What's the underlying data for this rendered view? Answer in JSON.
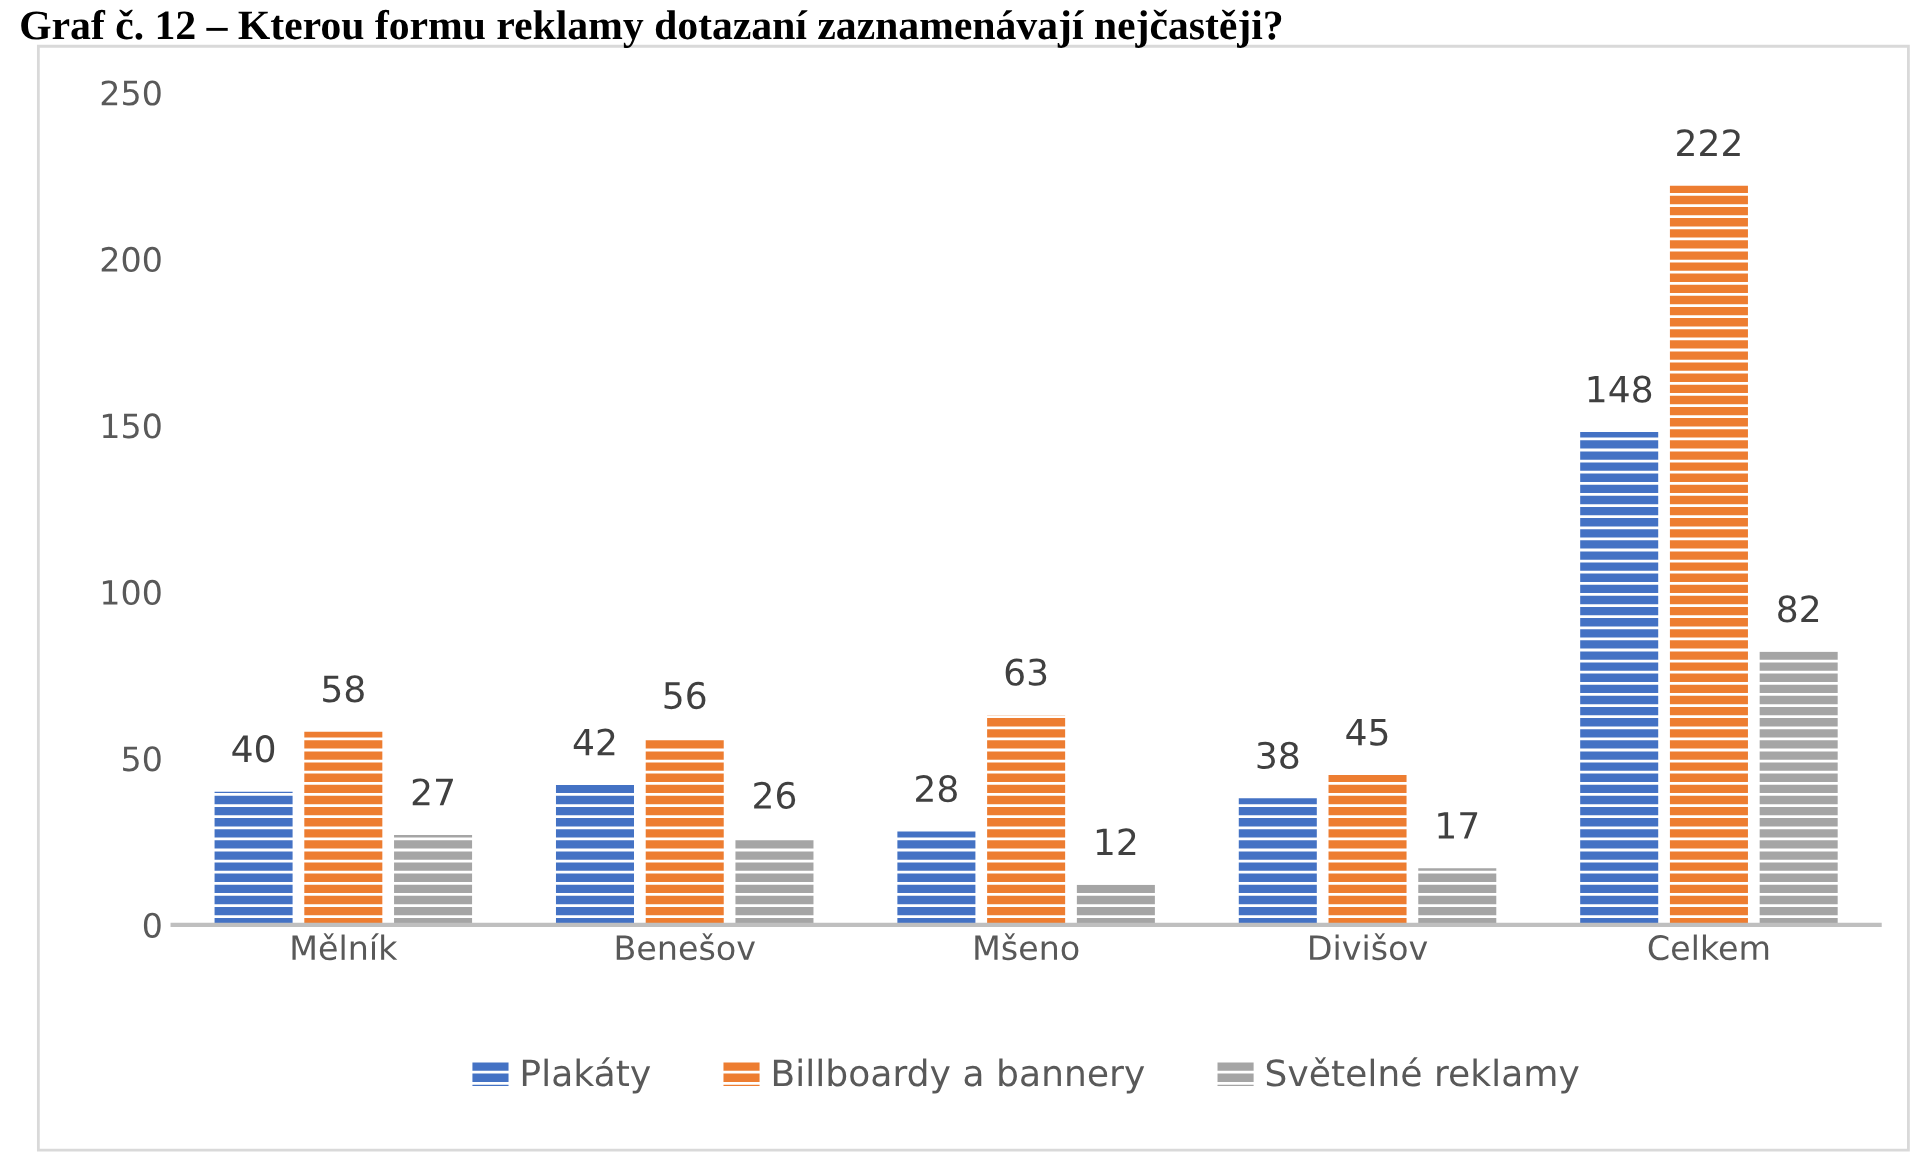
{
  "chart_data": {
    "type": "bar",
    "title": "Graf č. 12 – Kterou formu reklamy dotazaní zaznamenávají nejčastěji?",
    "categories": [
      "Mělník",
      "Benešov",
      "Mšeno",
      "Divišov",
      "Celkem"
    ],
    "series": [
      {
        "name": "Plakáty",
        "color": "#4472c4",
        "values": [
          40,
          42,
          28,
          38,
          148
        ]
      },
      {
        "name": "Billboardy a bannery",
        "color": "#ed7d31",
        "values": [
          58,
          56,
          63,
          45,
          222
        ]
      },
      {
        "name": "Světelné reklamy",
        "color": "#a5a5a5",
        "values": [
          27,
          26,
          12,
          17,
          82
        ]
      }
    ],
    "ylim": [
      0,
      250
    ],
    "yticks": [
      0,
      50,
      100,
      150,
      200,
      250
    ],
    "grid": false,
    "legend": "bottom",
    "data_labels": true
  }
}
